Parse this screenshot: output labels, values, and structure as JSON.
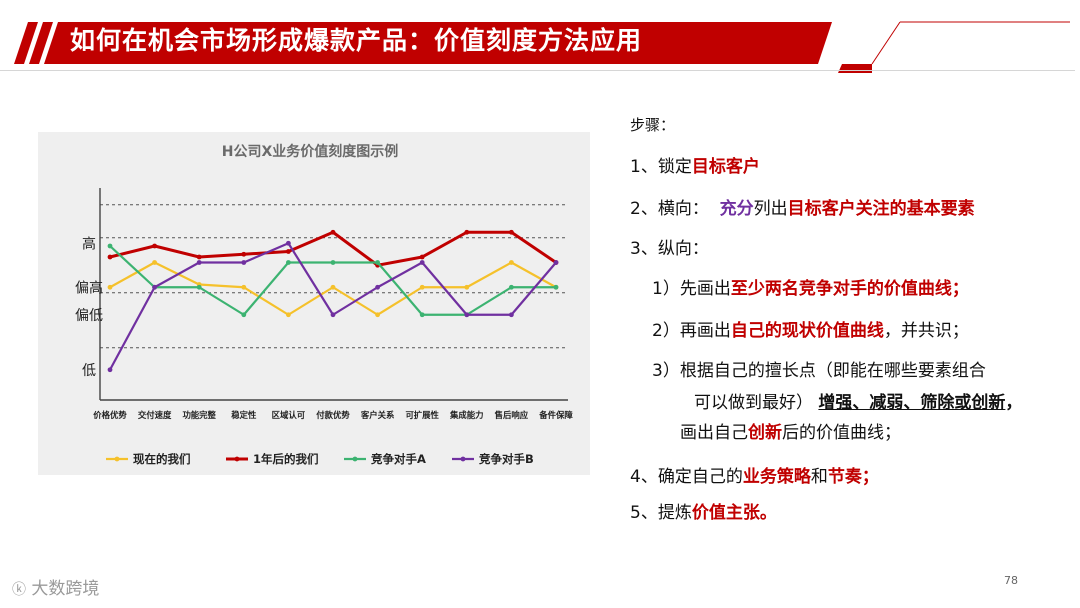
{
  "header": {
    "title": "如何在机会市场形成爆款产品：价值刻度方法应用"
  },
  "chart_data": {
    "type": "line",
    "title": "H公司X业务价值刻度图示例",
    "categories": [
      "价格优势",
      "交付速度",
      "功能完整",
      "稳定性",
      "区域认可",
      "付款优势",
      "客户关系",
      "可扩展性",
      "集成能力",
      "售后响应",
      "备件保障"
    ],
    "y_levels": [
      "低",
      "偏低",
      "偏高",
      "高"
    ],
    "ylim": [
      0,
      4
    ],
    "grid": "dashed horizontal",
    "legend_position": "bottom",
    "series": [
      {
        "name": "现在的我们",
        "color": "#f5c12b",
        "values": [
          2.05,
          2.5,
          2.1,
          2.05,
          1.55,
          2.05,
          1.55,
          2.05,
          2.05,
          2.5,
          2.05
        ]
      },
      {
        "name": "1年后的我们",
        "color": "#c00000",
        "values": [
          2.6,
          2.8,
          2.6,
          2.65,
          2.7,
          3.05,
          2.45,
          2.6,
          3.05,
          3.05,
          2.5
        ]
      },
      {
        "name": "竞争对手A",
        "color": "#3cb371",
        "values": [
          2.8,
          2.05,
          2.05,
          1.55,
          2.5,
          2.5,
          2.5,
          1.55,
          1.55,
          2.05,
          2.05
        ]
      },
      {
        "name": "竞争对手B",
        "color": "#7030a0",
        "values": [
          0.55,
          2.05,
          2.5,
          2.5,
          2.85,
          1.55,
          2.05,
          2.5,
          1.55,
          1.55,
          2.5
        ]
      }
    ]
  },
  "steps": {
    "heading": "步骤：",
    "s1_prefix": "1、锁定",
    "s1_red": "目标客户",
    "s2_prefix": "2、横向：  ",
    "s2_purple": "充分",
    "s2_mid": "列出",
    "s2_red": "目标客户关注的基本要素",
    "s3": "3、纵向：",
    "s3_1_prefix": "1）先画出",
    "s3_1_red": "至少两名竞争对手的价值曲线；",
    "s3_2_prefix": "2）再画出",
    "s3_2_red": "自己的现状价值曲线",
    "s3_2_suffix": "，并共识；",
    "s3_3_line1": "3）根据自己的擅长点（即能在哪些要素组合",
    "s3_3_line2_prefix": "可以做到最好）",
    "s3_3_line2_uline": "增强、减弱、筛除或创新",
    "s3_3_line2_suffix": "，",
    "s3_3_line3_prefix": "画出自己",
    "s3_3_line3_red": "创新",
    "s3_3_line3_suffix": "后的价值曲线；",
    "s4_prefix": "4、确定自己的",
    "s4_red1": "业务策略",
    "s4_mid": "和",
    "s4_red2": "节奏；",
    "s5_prefix": "5、提炼",
    "s5_red": "价值主张。"
  },
  "footer": {
    "page_number": "78",
    "watermark": "大数跨境"
  },
  "colors": {
    "brand_red": "#c00000",
    "accent_purple": "#7030a0"
  }
}
